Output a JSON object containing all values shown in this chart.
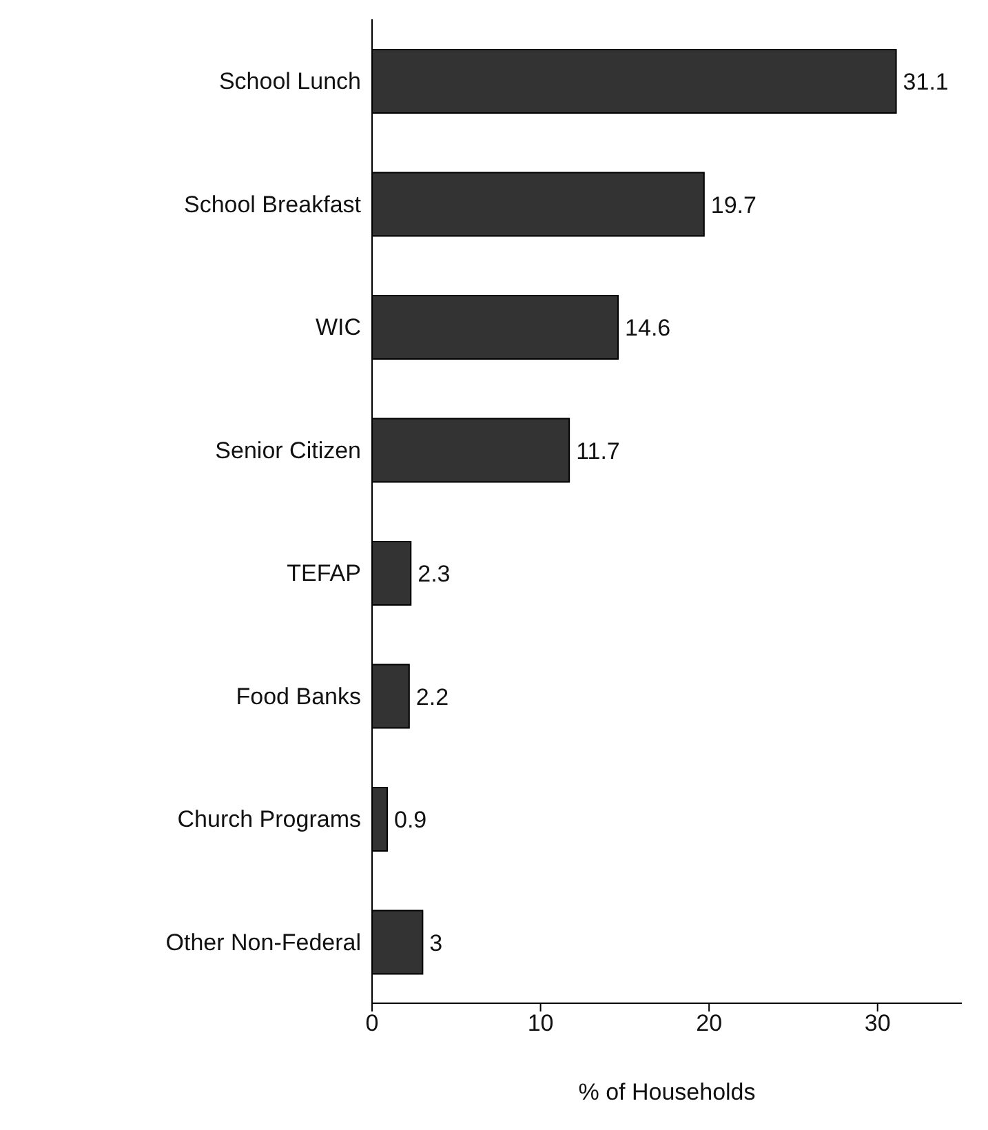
{
  "chart_data": {
    "type": "bar",
    "orientation": "horizontal",
    "xlabel": "% of Households",
    "categories": [
      "School Lunch",
      "School Breakfast",
      "WIC",
      "Senior Citizen",
      "TEFAP",
      "Food Banks",
      "Church Programs",
      "Other Non-Federal"
    ],
    "values": [
      31.1,
      19.7,
      14.6,
      11.7,
      2.3,
      2.2,
      0.9,
      3
    ],
    "color": "#333333",
    "data_labels": true,
    "xlim": [
      0,
      35
    ],
    "xticks": [
      0,
      10,
      20,
      30
    ]
  }
}
